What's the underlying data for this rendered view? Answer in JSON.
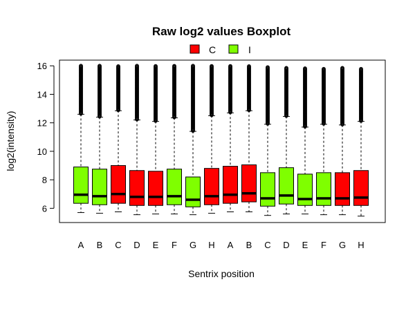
{
  "chart_data": {
    "type": "boxplot",
    "title": "Raw log2 values Boxplot",
    "xlabel": "Sentrix position",
    "ylabel": "log2(intensity)",
    "ylim": [
      5.0,
      16.4
    ],
    "yticks": [
      6,
      8,
      10,
      12,
      14,
      16
    ],
    "categories": [
      "A",
      "B",
      "C",
      "D",
      "E",
      "F",
      "G",
      "H",
      "A",
      "B",
      "C",
      "D",
      "E",
      "F",
      "G",
      "H"
    ],
    "legend": {
      "placement": "top-center",
      "entries": [
        {
          "label": "C",
          "color": "#ff0000"
        },
        {
          "label": "I",
          "color": "#7fff00"
        }
      ]
    },
    "boxes": [
      {
        "group": "I",
        "whisker_low": 5.7,
        "q1": 6.35,
        "median": 6.95,
        "q3": 8.9,
        "whisker_high": 12.6,
        "outliers_to": 16.0
      },
      {
        "group": "I",
        "whisker_low": 5.65,
        "q1": 6.25,
        "median": 6.85,
        "q3": 8.75,
        "whisker_high": 12.4,
        "outliers_to": 16.0
      },
      {
        "group": "C",
        "whisker_low": 5.75,
        "q1": 6.35,
        "median": 7.0,
        "q3": 9.0,
        "whisker_high": 12.85,
        "outliers_to": 16.0
      },
      {
        "group": "C",
        "whisker_low": 5.55,
        "q1": 6.2,
        "median": 6.8,
        "q3": 8.65,
        "whisker_high": 12.2,
        "outliers_to": 16.0
      },
      {
        "group": "C",
        "whisker_low": 5.6,
        "q1": 6.2,
        "median": 6.8,
        "q3": 8.6,
        "whisker_high": 12.1,
        "outliers_to": 16.0
      },
      {
        "group": "I",
        "whisker_low": 5.6,
        "q1": 6.25,
        "median": 6.85,
        "q3": 8.75,
        "whisker_high": 12.35,
        "outliers_to": 16.0
      },
      {
        "group": "I",
        "whisker_low": 5.55,
        "q1": 6.1,
        "median": 6.6,
        "q3": 8.2,
        "whisker_high": 11.4,
        "outliers_to": 16.0
      },
      {
        "group": "C",
        "whisker_low": 5.65,
        "q1": 6.25,
        "median": 6.85,
        "q3": 8.8,
        "whisker_high": 12.5,
        "outliers_to": 16.0
      },
      {
        "group": "C",
        "whisker_low": 5.75,
        "q1": 6.35,
        "median": 6.95,
        "q3": 8.95,
        "whisker_high": 12.7,
        "outliers_to": 16.0
      },
      {
        "group": "C",
        "whisker_low": 5.75,
        "q1": 6.45,
        "median": 7.05,
        "q3": 9.05,
        "whisker_high": 12.85,
        "outliers_to": 16.0
      },
      {
        "group": "I",
        "whisker_low": 5.5,
        "q1": 6.15,
        "median": 6.7,
        "q3": 8.5,
        "whisker_high": 11.9,
        "outliers_to": 15.9
      },
      {
        "group": "I",
        "whisker_low": 5.6,
        "q1": 6.3,
        "median": 6.9,
        "q3": 8.85,
        "whisker_high": 12.45,
        "outliers_to": 15.85
      },
      {
        "group": "I",
        "whisker_low": 5.6,
        "q1": 6.2,
        "median": 6.65,
        "q3": 8.4,
        "whisker_high": 11.7,
        "outliers_to": 15.85
      },
      {
        "group": "I",
        "whisker_low": 5.55,
        "q1": 6.2,
        "median": 6.7,
        "q3": 8.5,
        "whisker_high": 11.9,
        "outliers_to": 15.8
      },
      {
        "group": "C",
        "whisker_low": 5.55,
        "q1": 6.2,
        "median": 6.7,
        "q3": 8.5,
        "whisker_high": 11.85,
        "outliers_to": 15.85
      },
      {
        "group": "C",
        "whisker_low": 5.45,
        "q1": 6.2,
        "median": 6.75,
        "q3": 8.65,
        "whisker_high": 12.1,
        "outliers_to": 15.8
      }
    ]
  }
}
